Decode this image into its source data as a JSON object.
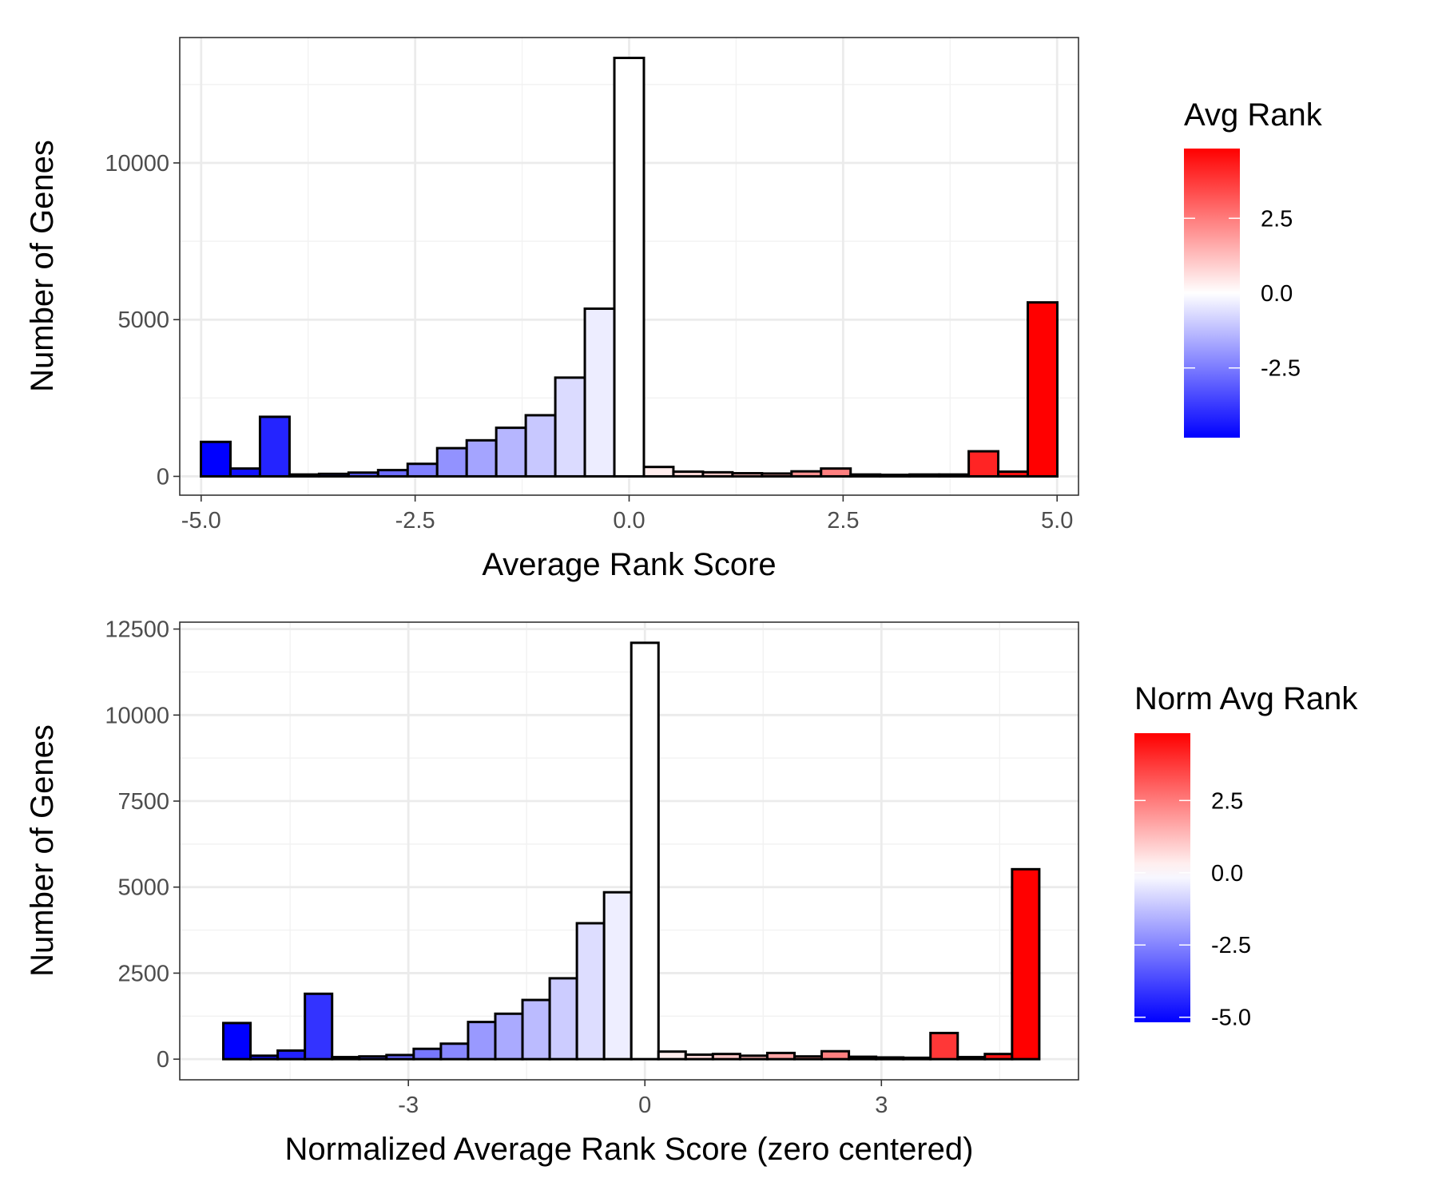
{
  "chart_data": [
    {
      "type": "bar",
      "subtype": "histogram",
      "xlabel": "Average Rank Score",
      "ylabel": "Number of Genes",
      "xlim": [
        -5.25,
        5.25
      ],
      "ylim": [
        -600,
        14000
      ],
      "x_ticks": [
        -5.0,
        -2.5,
        0.0,
        2.5,
        5.0
      ],
      "x_tick_labels": [
        "-5.0",
        "-2.5",
        "0.0",
        "2.5",
        "5.0"
      ],
      "y_ticks": [
        0,
        5000,
        10000
      ],
      "y_tick_labels": [
        "0",
        "5000",
        "10000"
      ],
      "grid": true,
      "bin_width": 0.345,
      "bin_centers": [
        -4.83,
        -4.485,
        -4.14,
        -3.795,
        -3.45,
        -3.105,
        -2.76,
        -2.415,
        -2.07,
        -1.725,
        -1.38,
        -1.035,
        -0.69,
        -0.345,
        0.0,
        0.345,
        0.69,
        1.035,
        1.38,
        1.725,
        2.07,
        2.415,
        2.76,
        3.105,
        3.45,
        3.795,
        4.14,
        4.485,
        4.83
      ],
      "values": [
        1100,
        250,
        1900,
        60,
        80,
        120,
        200,
        400,
        900,
        1150,
        1550,
        1950,
        3150,
        5350,
        13350,
        300,
        150,
        130,
        100,
        90,
        160,
        250,
        60,
        50,
        60,
        60,
        800,
        150,
        5550
      ],
      "legend": {
        "title": "Avg Rank",
        "position": "right",
        "type": "colorbar",
        "limits": [
          -4.83,
          4.83
        ],
        "breaks": [
          2.5,
          0.0,
          -2.5
        ],
        "labels": [
          "2.5",
          "0.0",
          "-2.5"
        ]
      },
      "colors": {
        "low": "#0000ff",
        "mid": "#ffffff",
        "high": "#ff0000",
        "outline": "#000000"
      }
    },
    {
      "type": "bar",
      "subtype": "histogram",
      "xlabel": "Normalized Average Rank Score (zero centered)",
      "ylabel": "Number of Genes",
      "xlim": [
        -5.9,
        5.5
      ],
      "ylim": [
        -600,
        12700
      ],
      "x_ticks": [
        -3,
        0,
        3
      ],
      "x_tick_labels": [
        "-3",
        "0",
        "3"
      ],
      "y_ticks": [
        0,
        2500,
        5000,
        7500,
        10000,
        12500
      ],
      "y_tick_labels": [
        "0",
        "2500",
        "5000",
        "7500",
        "10000",
        "12500"
      ],
      "grid": true,
      "bin_width": 0.345,
      "bin_centers": [
        -5.175,
        -4.83,
        -4.485,
        -4.14,
        -3.795,
        -3.45,
        -3.105,
        -2.76,
        -2.415,
        -2.07,
        -1.725,
        -1.38,
        -1.035,
        -0.69,
        -0.345,
        0.0,
        0.345,
        0.69,
        1.035,
        1.38,
        1.725,
        2.07,
        2.415,
        2.76,
        3.105,
        3.45,
        3.795,
        4.14,
        4.485,
        4.83
      ],
      "values": [
        1050,
        100,
        250,
        1900,
        60,
        80,
        120,
        300,
        450,
        1080,
        1320,
        1720,
        2350,
        3950,
        4850,
        12100,
        220,
        130,
        150,
        100,
        180,
        80,
        230,
        70,
        50,
        40,
        760,
        60,
        150,
        5520
      ],
      "legend": {
        "title": "Norm Avg Rank",
        "position": "right",
        "type": "colorbar",
        "limits": [
          -5.175,
          4.83
        ],
        "breaks": [
          2.5,
          0.0,
          -2.5,
          -5.0
        ],
        "labels": [
          "2.5",
          "0.0",
          "-2.5",
          "-5.0"
        ]
      },
      "colors": {
        "low": "#0000ff",
        "mid": "#ffffff",
        "high": "#ff0000",
        "outline": "#000000"
      }
    }
  ]
}
